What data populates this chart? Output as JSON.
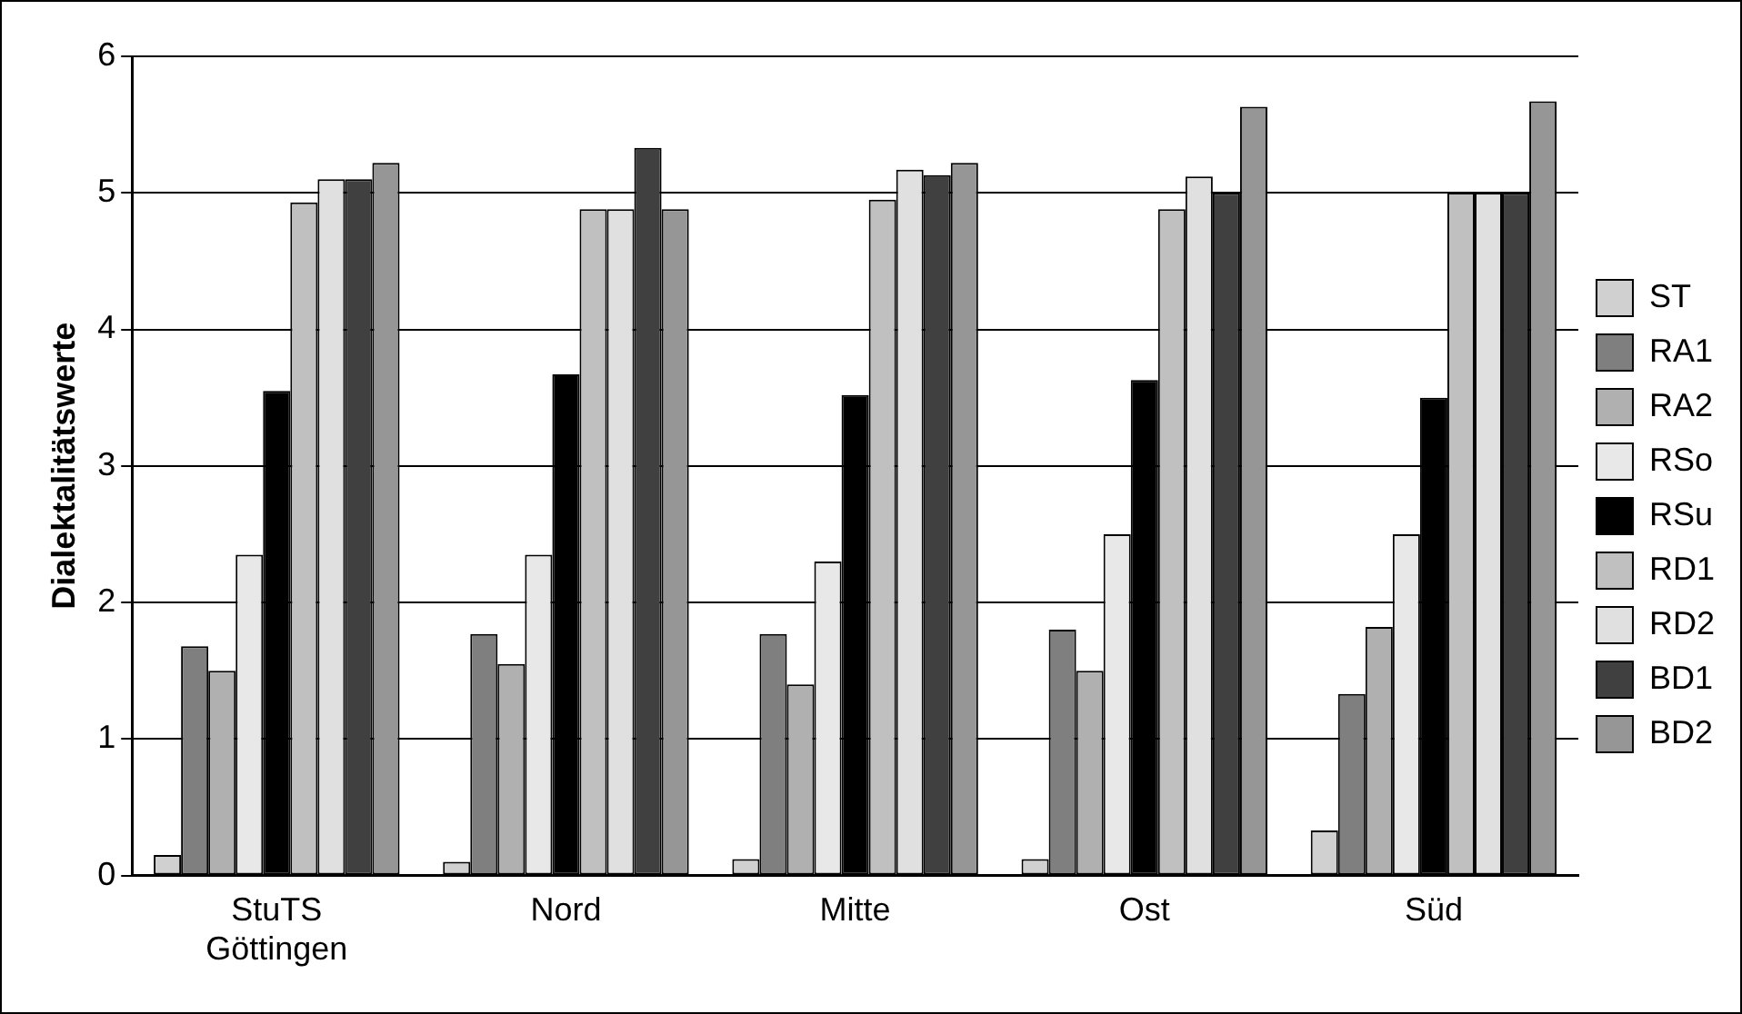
{
  "chart_data": {
    "type": "bar",
    "ylabel": "Dialektalitätswerte",
    "categories": [
      "StuTS\nGöttingen",
      "Nord",
      "Mitte",
      "Ost",
      "Süd"
    ],
    "series": [
      {
        "name": "ST",
        "color": "#d0d0d0",
        "values": [
          0.15,
          0.1,
          0.12,
          0.12,
          0.33
        ]
      },
      {
        "name": "RA1",
        "color": "#7f7f7f",
        "values": [
          1.68,
          1.77,
          1.77,
          1.8,
          1.33
        ]
      },
      {
        "name": "RA2",
        "color": "#b0b0b0",
        "values": [
          1.5,
          1.55,
          1.4,
          1.5,
          1.82
        ]
      },
      {
        "name": "RSo",
        "color": "#e8e8e8",
        "values": [
          2.35,
          2.35,
          2.3,
          2.5,
          2.5
        ]
      },
      {
        "name": "RSu",
        "color": "#000000",
        "values": [
          3.55,
          3.67,
          3.52,
          3.63,
          3.5
        ]
      },
      {
        "name": "RD1",
        "color": "#c0c0c0",
        "values": [
          4.93,
          4.88,
          4.95,
          4.88,
          5.0
        ]
      },
      {
        "name": "RD2",
        "color": "#e0e0e0",
        "values": [
          5.1,
          4.88,
          5.17,
          5.12,
          5.0
        ]
      },
      {
        "name": "BD1",
        "color": "#404040",
        "values": [
          5.1,
          5.33,
          5.13,
          5.0,
          5.0
        ]
      },
      {
        "name": "BD2",
        "color": "#969696",
        "values": [
          5.22,
          4.88,
          5.22,
          5.63,
          5.67
        ]
      }
    ],
    "ylim": [
      0,
      6
    ],
    "yticks": [
      0,
      1,
      2,
      3,
      4,
      5,
      6
    ],
    "grid": "y",
    "legend": "right"
  }
}
